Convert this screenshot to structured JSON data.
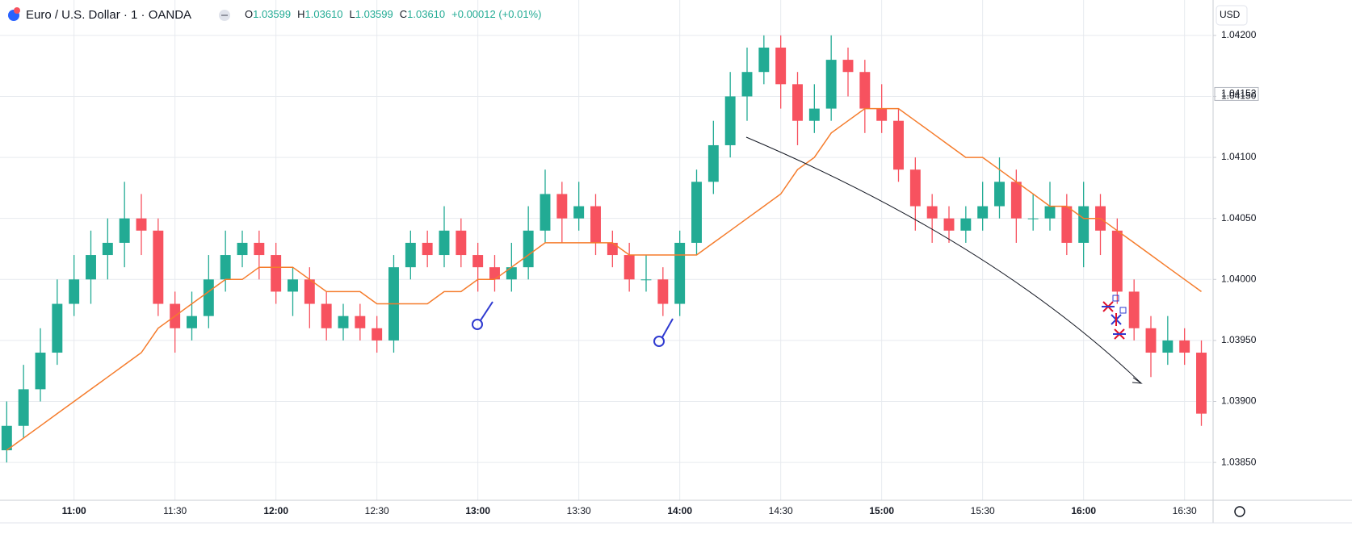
{
  "chart_data": {
    "type": "candlestick",
    "title": "Euro / U.S. Dollar · 1 · OANDA",
    "ohlc_legend": [
      {
        "key": "O",
        "text": "1.03599"
      },
      {
        "key": "H",
        "text": "1.03610"
      },
      {
        "key": "L",
        "text": "1.03599"
      },
      {
        "key": "C",
        "text": "1.03610"
      }
    ],
    "change": "+0.00012 (+0.01%)",
    "currency": "USD",
    "last_price": {
      "value": 1.04152,
      "label": "1.04152"
    },
    "up_color": "#22ab94",
    "down_color": "#f7525f",
    "x": [
      640,
      645,
      650,
      655,
      660,
      665,
      670,
      675,
      680,
      685,
      690,
      695,
      700,
      705,
      710,
      715,
      720,
      725,
      730,
      735,
      740,
      745,
      750,
      755,
      760,
      765,
      770,
      775,
      780,
      785,
      790,
      795,
      800,
      805,
      810,
      815,
      820,
      825,
      830,
      835,
      840,
      845,
      850,
      855,
      860,
      865,
      870,
      875,
      880,
      885,
      890,
      895,
      900,
      905,
      910,
      915,
      920,
      925,
      930,
      935,
      940,
      945,
      950,
      955,
      960,
      965,
      970,
      975,
      980,
      985,
      990,
      995
    ],
    "open": [
      1.0386,
      1.0388,
      1.0391,
      1.0394,
      1.0398,
      1.04,
      1.0402,
      1.0403,
      1.0405,
      1.0404,
      1.0398,
      1.0396,
      1.0397,
      1.04,
      1.0402,
      1.0403,
      1.0402,
      1.0399,
      1.04,
      1.0398,
      1.0396,
      1.0397,
      1.0396,
      1.0395,
      1.0401,
      1.0403,
      1.0402,
      1.0404,
      1.0402,
      1.0401,
      1.04,
      1.0401,
      1.0404,
      1.0407,
      1.0405,
      1.0406,
      1.0403,
      1.0402,
      1.04,
      1.04,
      1.0398,
      1.0403,
      1.0408,
      1.0411,
      1.0415,
      1.0417,
      1.0419,
      1.0416,
      1.0413,
      1.0414,
      1.0418,
      1.0417,
      1.0414,
      1.0413,
      1.0409,
      1.0406,
      1.0405,
      1.0404,
      1.0405,
      1.0406,
      1.0408,
      1.0405,
      1.0405,
      1.0406,
      1.0403,
      1.0406,
      1.0404,
      1.0399,
      1.0396,
      1.0394,
      1.0395,
      1.0394
    ],
    "high": [
      1.039,
      1.0393,
      1.0396,
      1.04,
      1.0402,
      1.0404,
      1.0405,
      1.0408,
      1.0407,
      1.0405,
      1.0399,
      1.0399,
      1.0402,
      1.0404,
      1.0404,
      1.0404,
      1.0403,
      1.0401,
      1.0401,
      1.0399,
      1.0398,
      1.0398,
      1.0397,
      1.0402,
      1.0404,
      1.0404,
      1.0406,
      1.0405,
      1.0403,
      1.0402,
      1.0403,
      1.0406,
      1.0409,
      1.0408,
      1.0408,
      1.0407,
      1.0404,
      1.0403,
      1.0402,
      1.0401,
      1.0404,
      1.0409,
      1.0413,
      1.0417,
      1.0419,
      1.042,
      1.042,
      1.0417,
      1.0416,
      1.042,
      1.0419,
      1.0418,
      1.0416,
      1.0414,
      1.041,
      1.0407,
      1.0406,
      1.0406,
      1.0408,
      1.041,
      1.0409,
      1.0407,
      1.0408,
      1.0407,
      1.0408,
      1.0407,
      1.0405,
      1.04,
      1.0397,
      1.0397,
      1.0396,
      1.0395
    ],
    "low": [
      1.0385,
      1.0387,
      1.039,
      1.0393,
      1.0397,
      1.0398,
      1.04,
      1.0401,
      1.0402,
      1.0397,
      1.0394,
      1.0395,
      1.0396,
      1.0399,
      1.0401,
      1.04,
      1.0398,
      1.0397,
      1.0396,
      1.0395,
      1.0395,
      1.0395,
      1.0394,
      1.0394,
      1.04,
      1.0401,
      1.0401,
      1.0401,
      1.0399,
      1.0399,
      1.0399,
      1.04,
      1.0403,
      1.0403,
      1.0404,
      1.0402,
      1.0401,
      1.0399,
      1.0399,
      1.0397,
      1.0397,
      1.0402,
      1.0407,
      1.041,
      1.0413,
      1.0416,
      1.0414,
      1.0411,
      1.0412,
      1.0413,
      1.0415,
      1.0412,
      1.0412,
      1.0408,
      1.0404,
      1.0403,
      1.0403,
      1.0403,
      1.0404,
      1.0405,
      1.0403,
      1.0404,
      1.0404,
      1.0402,
      1.0401,
      1.0402,
      1.0398,
      1.0395,
      1.0392,
      1.0393,
      1.0393,
      1.0388
    ],
    "close": [
      1.0388,
      1.0391,
      1.0394,
      1.0398,
      1.04,
      1.0402,
      1.0403,
      1.0405,
      1.0404,
      1.0398,
      1.0396,
      1.0397,
      1.04,
      1.0402,
      1.0403,
      1.0402,
      1.0399,
      1.04,
      1.0398,
      1.0396,
      1.0397,
      1.0396,
      1.0395,
      1.0401,
      1.0403,
      1.0402,
      1.0404,
      1.0402,
      1.0401,
      1.04,
      1.0401,
      1.0404,
      1.0407,
      1.0405,
      1.0406,
      1.0403,
      1.0402,
      1.04,
      1.04,
      1.0398,
      1.0403,
      1.0408,
      1.0411,
      1.0415,
      1.0417,
      1.0419,
      1.0416,
      1.0413,
      1.0414,
      1.0418,
      1.0417,
      1.0414,
      1.0413,
      1.0409,
      1.0406,
      1.0405,
      1.0404,
      1.0405,
      1.0406,
      1.0408,
      1.0405,
      1.0405,
      1.0406,
      1.0403,
      1.0406,
      1.0404,
      1.0399,
      1.0396,
      1.0394,
      1.0395,
      1.0394,
      1.0389
    ],
    "ma": {
      "color": "#f57c2c",
      "values": [
        1.0386,
        1.0387,
        1.0388,
        1.0389,
        1.039,
        1.0391,
        1.0392,
        1.0393,
        1.0394,
        1.0396,
        1.0397,
        1.0398,
        1.0399,
        1.04,
        1.04,
        1.0401,
        1.0401,
        1.0401,
        1.04,
        1.0399,
        1.0399,
        1.0399,
        1.0398,
        1.0398,
        1.0398,
        1.0398,
        1.0399,
        1.0399,
        1.04,
        1.04,
        1.0401,
        1.0402,
        1.0403,
        1.0403,
        1.0403,
        1.0403,
        1.0403,
        1.0402,
        1.0402,
        1.0402,
        1.0402,
        1.0402,
        1.0403,
        1.0404,
        1.0405,
        1.0406,
        1.0407,
        1.0409,
        1.041,
        1.0412,
        1.0413,
        1.0414,
        1.0414,
        1.0414,
        1.0413,
        1.0412,
        1.0411,
        1.041,
        1.041,
        1.0409,
        1.0408,
        1.0407,
        1.0406,
        1.0406,
        1.0405,
        1.0405,
        1.0404,
        1.0403,
        1.0402,
        1.0401,
        1.04,
        1.0399
      ]
    },
    "xlim": [
      638,
      998
    ],
    "ylim": [
      1.03819,
      1.04229
    ],
    "xticks": [
      {
        "value": 660,
        "label": "11:00"
      },
      {
        "value": 690,
        "label": "11:30"
      },
      {
        "value": 720,
        "label": "12:00"
      },
      {
        "value": 750,
        "label": "12:30"
      },
      {
        "value": 780,
        "label": "13:00"
      },
      {
        "value": 810,
        "label": "13:30"
      },
      {
        "value": 840,
        "label": "14:00"
      },
      {
        "value": 870,
        "label": "14:30"
      },
      {
        "value": 900,
        "label": "15:00"
      },
      {
        "value": 930,
        "label": "15:30"
      },
      {
        "value": 960,
        "label": "16:00"
      },
      {
        "value": 990,
        "label": "16:30"
      }
    ],
    "yticks": [
      {
        "value": 1.0385,
        "label": "1.03850"
      },
      {
        "value": 1.039,
        "label": "1.03900"
      },
      {
        "value": 1.0395,
        "label": "1.03950"
      },
      {
        "value": 1.04,
        "label": "1.04000"
      },
      {
        "value": 1.0405,
        "label": "1.04050"
      },
      {
        "value": 1.041,
        "label": "1.04100"
      },
      {
        "value": 1.0415,
        "label": "1.04150"
      },
      {
        "value": 1.042,
        "label": "1.04200"
      }
    ],
    "grid": true
  }
}
